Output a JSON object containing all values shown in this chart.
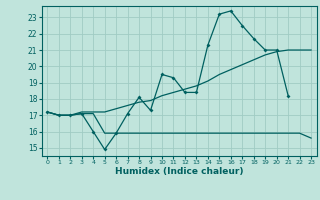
{
  "xlabel": "Humidex (Indice chaleur)",
  "bg_color": "#c0e4dc",
  "grid_color": "#a0ccc4",
  "line_color": "#006060",
  "ylim": [
    14.5,
    23.7
  ],
  "xlim": [
    -0.5,
    23.5
  ],
  "yticks": [
    15,
    16,
    17,
    18,
    19,
    20,
    21,
    22,
    23
  ],
  "xticks": [
    0,
    1,
    2,
    3,
    4,
    5,
    6,
    7,
    8,
    9,
    10,
    11,
    12,
    13,
    14,
    15,
    16,
    17,
    18,
    19,
    20,
    21,
    22,
    23
  ],
  "curve1_x": [
    0,
    1,
    2,
    3,
    4,
    5,
    6,
    7,
    8,
    9,
    10,
    11,
    12,
    13,
    14,
    15,
    16,
    17,
    18,
    19,
    20,
    21
  ],
  "curve1_y": [
    17.2,
    17.0,
    17.0,
    17.1,
    16.0,
    14.9,
    15.9,
    17.1,
    18.1,
    17.3,
    19.5,
    19.3,
    18.4,
    18.4,
    21.3,
    23.2,
    23.4,
    22.5,
    21.7,
    21.0,
    21.0,
    18.2
  ],
  "curve2_x": [
    0,
    1,
    2,
    3,
    4,
    5,
    6,
    7,
    8,
    9,
    10,
    11,
    12,
    13,
    14,
    15,
    16,
    17,
    18,
    19,
    20,
    21,
    22,
    23
  ],
  "curve2_y": [
    17.2,
    17.0,
    17.0,
    17.1,
    17.1,
    15.9,
    15.9,
    15.9,
    15.9,
    15.9,
    15.9,
    15.9,
    15.9,
    15.9,
    15.9,
    15.9,
    15.9,
    15.9,
    15.9,
    15.9,
    15.9,
    15.9,
    15.9,
    15.6
  ],
  "curve3_x": [
    0,
    1,
    2,
    3,
    4,
    5,
    6,
    7,
    8,
    9,
    10,
    11,
    12,
    13,
    14,
    15,
    16,
    17,
    18,
    19,
    20,
    21,
    22,
    23
  ],
  "curve3_y": [
    17.2,
    17.0,
    17.0,
    17.2,
    17.2,
    17.2,
    17.4,
    17.6,
    17.8,
    17.9,
    18.2,
    18.4,
    18.6,
    18.8,
    19.1,
    19.5,
    19.8,
    20.1,
    20.4,
    20.7,
    20.9,
    21.0,
    21.0,
    21.0
  ]
}
